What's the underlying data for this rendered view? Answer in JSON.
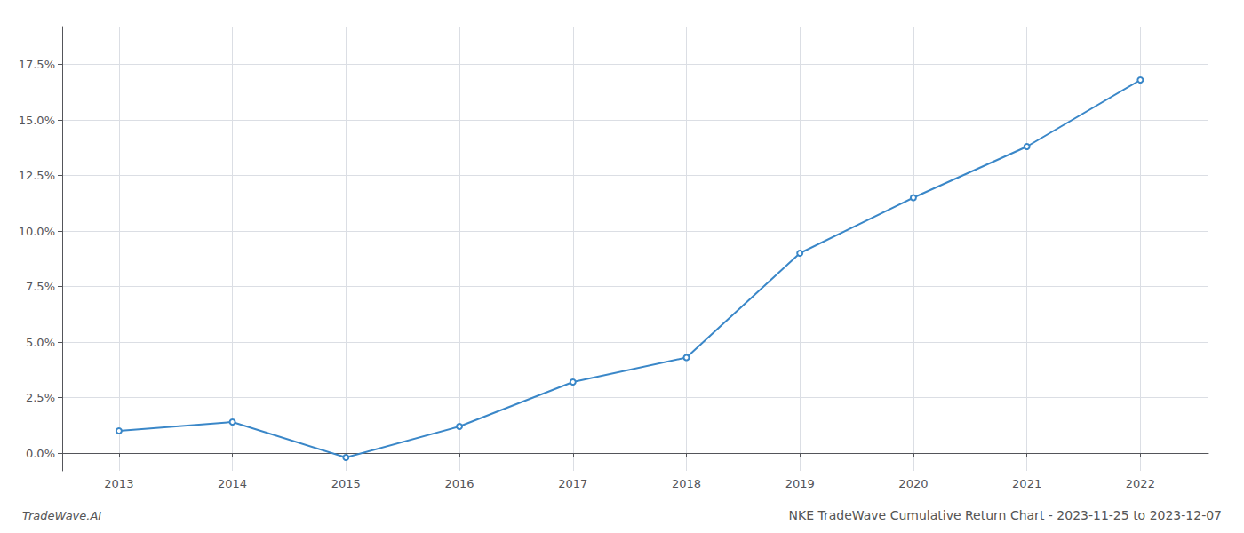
{
  "chart_data": {
    "type": "line",
    "title": "NKE TradeWave Cumulative Return Chart - 2023-11-25 to 2023-12-07",
    "annotations": [
      "TradeWave.AI"
    ],
    "x": [
      2013,
      2014,
      2015,
      2016,
      2017,
      2018,
      2019,
      2020,
      2021,
      2022
    ],
    "values": [
      0.01,
      0.014,
      -0.002,
      0.012,
      0.032,
      0.043,
      0.09,
      0.115,
      0.138,
      0.168
    ],
    "color": "#3a87c8",
    "xlim": [
      2012.5,
      2022.6
    ],
    "xticks": [
      2013,
      2014,
      2015,
      2016,
      2017,
      2018,
      2019,
      2020,
      2021,
      2022
    ],
    "ylim": [
      -0.008,
      0.192
    ],
    "yticks": [
      {
        "value": 0.0,
        "label": "0.0%"
      },
      {
        "value": 0.025,
        "label": "2.5%"
      },
      {
        "value": 0.05,
        "label": "5.0%"
      },
      {
        "value": 0.075,
        "label": "7.5%"
      },
      {
        "value": 0.1,
        "label": "10.0%"
      },
      {
        "value": 0.125,
        "label": "12.5%"
      },
      {
        "value": 0.15,
        "label": "15.0%"
      },
      {
        "value": 0.175,
        "label": "17.5%"
      }
    ],
    "grid": true
  }
}
